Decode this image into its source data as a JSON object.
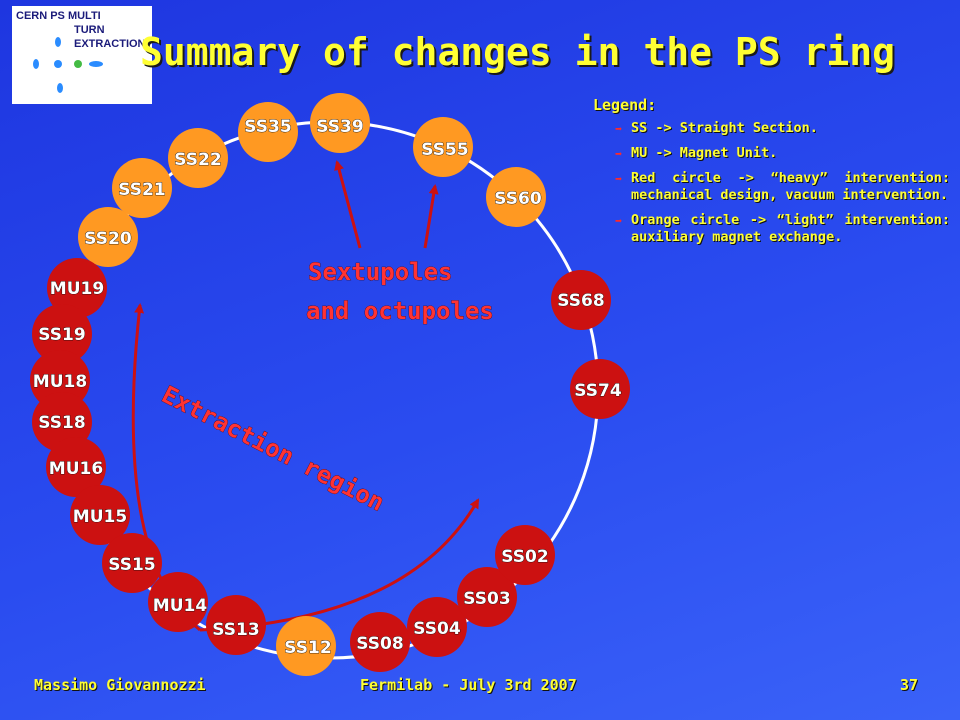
{
  "title": "Summary of changes in the PS ring",
  "logo": {
    "line1": "CERN PS MULTI",
    "line2": "TURN",
    "line3": "EXTRACTION"
  },
  "legend": {
    "heading": "Legend:",
    "items": [
      "SS -> Straight Section.",
      "MU -> Magnet Unit.",
      "Red circle -> “heavy” intervention: mechanical design, vacuum intervention.",
      "Orange circle -> “light” intervention: auxiliary magnet exchange."
    ]
  },
  "colors": {
    "red": "#cc1111",
    "orange": "#ff9922",
    "title": "#ffff33",
    "ring": "#ffffff",
    "arrow": "#cc1111"
  },
  "nodes": [
    {
      "label": "SS35",
      "type": "orange"
    },
    {
      "label": "SS39",
      "type": "orange"
    },
    {
      "label": "SS55",
      "type": "orange"
    },
    {
      "label": "SS60",
      "type": "orange"
    },
    {
      "label": "SS68",
      "type": "red"
    },
    {
      "label": "SS74",
      "type": "red"
    },
    {
      "label": "SS02",
      "type": "red"
    },
    {
      "label": "SS03",
      "type": "red"
    },
    {
      "label": "SS04",
      "type": "red"
    },
    {
      "label": "SS08",
      "type": "red"
    },
    {
      "label": "SS12",
      "type": "orange"
    },
    {
      "label": "SS13",
      "type": "red"
    },
    {
      "label": "MU14",
      "type": "red"
    },
    {
      "label": "SS15",
      "type": "red"
    },
    {
      "label": "MU15",
      "type": "red"
    },
    {
      "label": "MU16",
      "type": "red"
    },
    {
      "label": "SS18",
      "type": "red"
    },
    {
      "label": "MU18",
      "type": "red"
    },
    {
      "label": "SS19",
      "type": "red"
    },
    {
      "label": "MU19",
      "type": "red"
    },
    {
      "label": "SS20",
      "type": "orange"
    },
    {
      "label": "SS21",
      "type": "orange"
    },
    {
      "label": "SS22",
      "type": "orange"
    }
  ],
  "annotations": {
    "sextupoles_line1": "Sextupoles",
    "sextupoles_line2": "and octupoles",
    "extraction": "Extraction region"
  },
  "footer": {
    "author": "Massimo Giovannozzi",
    "event": "Fermilab - July 3rd 2007",
    "page": "37"
  }
}
